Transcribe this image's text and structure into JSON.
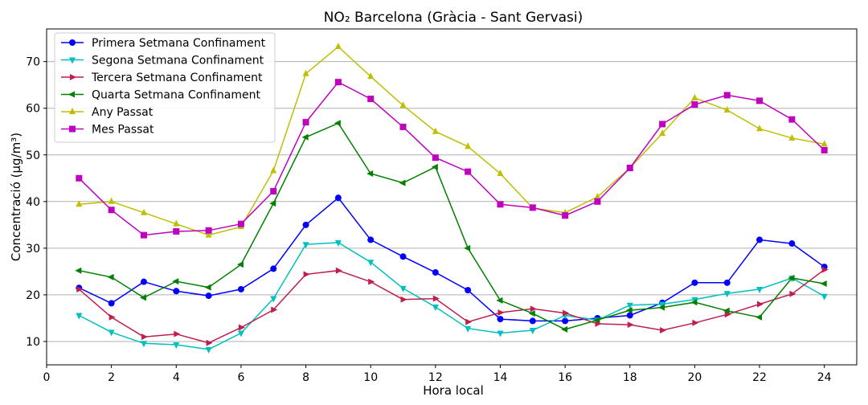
{
  "chart_data": {
    "type": "line",
    "title": "NO₂ Barcelona (Gràcia - Sant Gervasi)",
    "xlabel": "Hora local",
    "ylabel": "Concentració (µg/m³)",
    "xlim": [
      0,
      25
    ],
    "ylim": [
      5,
      77
    ],
    "xticks": [
      0,
      2,
      4,
      6,
      8,
      10,
      12,
      14,
      16,
      18,
      20,
      22,
      24
    ],
    "yticks": [
      10,
      20,
      30,
      40,
      50,
      60,
      70
    ],
    "grid": "horizontal",
    "legend_position": "top-left",
    "x": [
      1,
      2,
      3,
      4,
      5,
      6,
      7,
      8,
      9,
      10,
      11,
      12,
      13,
      14,
      15,
      16,
      17,
      18,
      19,
      20,
      21,
      22,
      23,
      24
    ],
    "series": [
      {
        "name": "Primera Setmana Confinament",
        "color": "#0000ff",
        "marker": "circle",
        "values": [
          21.5,
          18.2,
          22.8,
          20.8,
          19.8,
          21.2,
          25.6,
          35.0,
          40.8,
          31.8,
          28.2,
          24.8,
          21.0,
          14.8,
          14.4,
          14.4,
          15.0,
          15.6,
          18.3,
          22.6,
          22.6,
          31.8,
          31.0,
          26.0
        ]
      },
      {
        "name": "Segona Setmana Confinament",
        "color": "#00bfbf",
        "marker": "triangle-down",
        "values": [
          15.6,
          12.0,
          9.6,
          9.3,
          8.3,
          11.8,
          19.2,
          30.8,
          31.2,
          27.0,
          21.4,
          17.4,
          12.8,
          11.8,
          12.4,
          15.6,
          14.6,
          17.8,
          18.0,
          19.0,
          20.3,
          21.2,
          23.6,
          19.7
        ]
      },
      {
        "name": "Tercera Setmana Confinament",
        "color": "#bf1f4f",
        "marker": "triangle-right",
        "values": [
          21.2,
          15.2,
          11.0,
          11.6,
          9.7,
          13.0,
          16.8,
          24.4,
          25.2,
          22.8,
          19.0,
          19.2,
          14.2,
          16.2,
          17.0,
          16.1,
          13.8,
          13.6,
          12.4,
          14.0,
          15.8,
          18.0,
          20.2,
          25.4
        ]
      },
      {
        "name": "Quarta Setmana Confinament",
        "color": "#008000",
        "marker": "triangle-left",
        "values": [
          25.2,
          23.8,
          19.4,
          22.9,
          21.6,
          26.5,
          39.6,
          53.8,
          56.8,
          46.0,
          44.0,
          47.4,
          30.0,
          18.8,
          16.0,
          12.6,
          14.6,
          16.7,
          17.3,
          18.4,
          16.6,
          15.2,
          23.6,
          22.4
        ]
      },
      {
        "name": "Any Passat",
        "color": "#bfbf00",
        "marker": "triangle-up",
        "values": [
          39.4,
          40.0,
          37.6,
          35.2,
          32.8,
          34.6,
          46.6,
          67.4,
          73.2,
          66.8,
          60.6,
          55.0,
          51.8,
          46.0,
          38.6,
          37.6,
          41.0,
          47.2,
          54.6,
          62.2,
          59.6,
          55.6,
          53.6,
          52.3
        ]
      },
      {
        "name": "Mes Passat",
        "color": "#bf00bf",
        "marker": "square",
        "values": [
          45.0,
          38.2,
          32.8,
          33.6,
          33.8,
          35.2,
          42.2,
          57.0,
          65.6,
          62.0,
          56.0,
          49.4,
          46.4,
          39.4,
          38.7,
          37.0,
          40.0,
          47.2,
          56.6,
          60.8,
          62.8,
          61.6,
          57.6,
          51.0
        ]
      }
    ]
  }
}
